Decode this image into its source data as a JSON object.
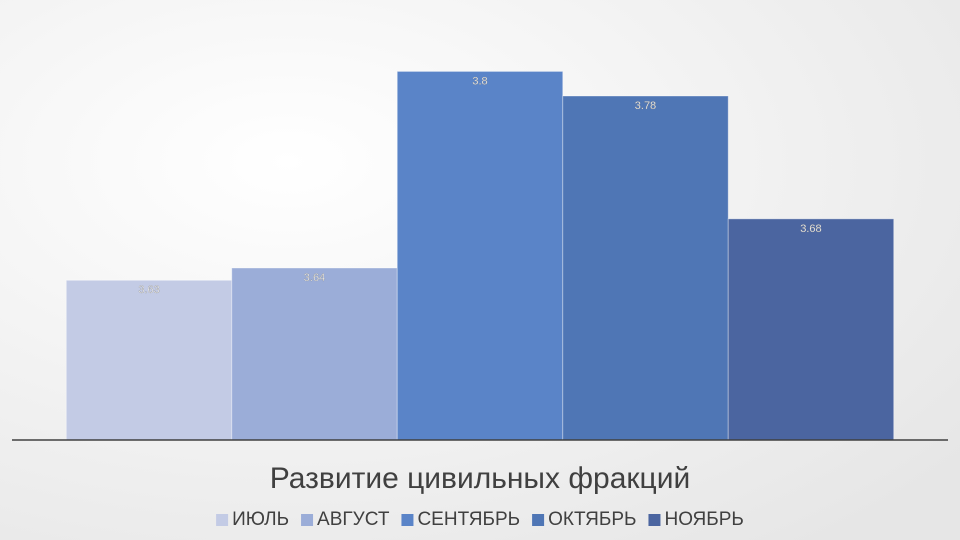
{
  "chart_data": {
    "type": "bar",
    "title": "Развитие цивильных фракций",
    "categories": [
      null
    ],
    "series": [
      {
        "name": "ИЮЛЬ",
        "color": "#c3cbe5",
        "values": [
          3.63
        ]
      },
      {
        "name": "АВГУСТ",
        "color": "#9badd8",
        "values": [
          3.64
        ]
      },
      {
        "name": "СЕНТЯБРЬ",
        "color": "#5a84c8",
        "values": [
          3.8
        ]
      },
      {
        "name": "ОКТЯБРЬ",
        "color": "#4f76b5",
        "values": [
          3.78
        ]
      },
      {
        "name": "НОЯБРЬ",
        "color": "#4b65a0",
        "values": [
          3.68
        ]
      }
    ],
    "ylim": [
      3.5,
      3.85
    ],
    "legend": "bottom"
  }
}
